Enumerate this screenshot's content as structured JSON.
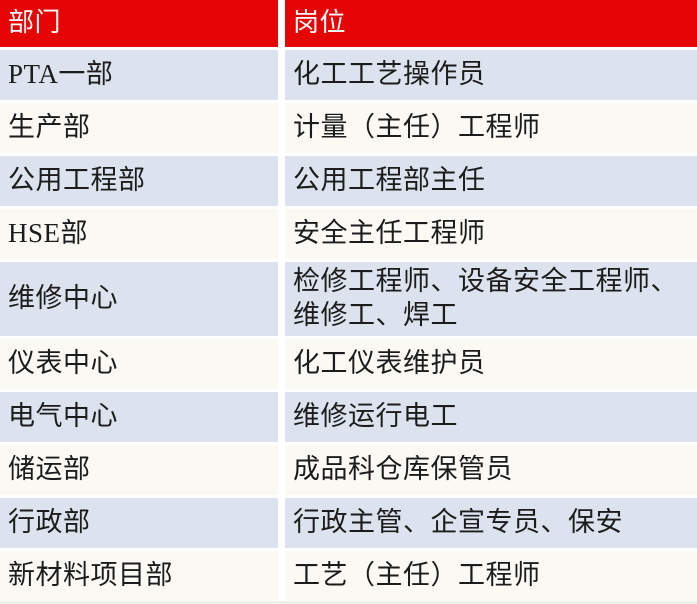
{
  "table": {
    "columns": {
      "department": "部门",
      "position": "岗位"
    },
    "rows": [
      {
        "department": "PTA一部",
        "position": "化工工艺操作员"
      },
      {
        "department": "生产部",
        "position": "计量（主任）工程师"
      },
      {
        "department": "公用工程部",
        "position": "公用工程部主任"
      },
      {
        "department": "HSE部",
        "position": "安全主任工程师"
      },
      {
        "department": "维修中心",
        "position": "检修工程师、设备安全工程师、\n维修工、焊工"
      },
      {
        "department": "仪表中心",
        "position": "化工仪表维护员"
      },
      {
        "department": "电气中心",
        "position": "维修运行电工"
      },
      {
        "department": "储运部",
        "position": "成品科仓库保管员"
      },
      {
        "department": "行政部",
        "position": "行政主管、企宣专员、保安"
      },
      {
        "department": "新材料项目部",
        "position": "工艺（主任）工程师"
      }
    ],
    "colors": {
      "header_bg": "#e60505",
      "header_text": "#ffffff",
      "row_alt_bg": "#dce3ee",
      "row_bg": "#faf9f4",
      "text": "#1c1c1c",
      "gap": "#ffffff"
    }
  }
}
